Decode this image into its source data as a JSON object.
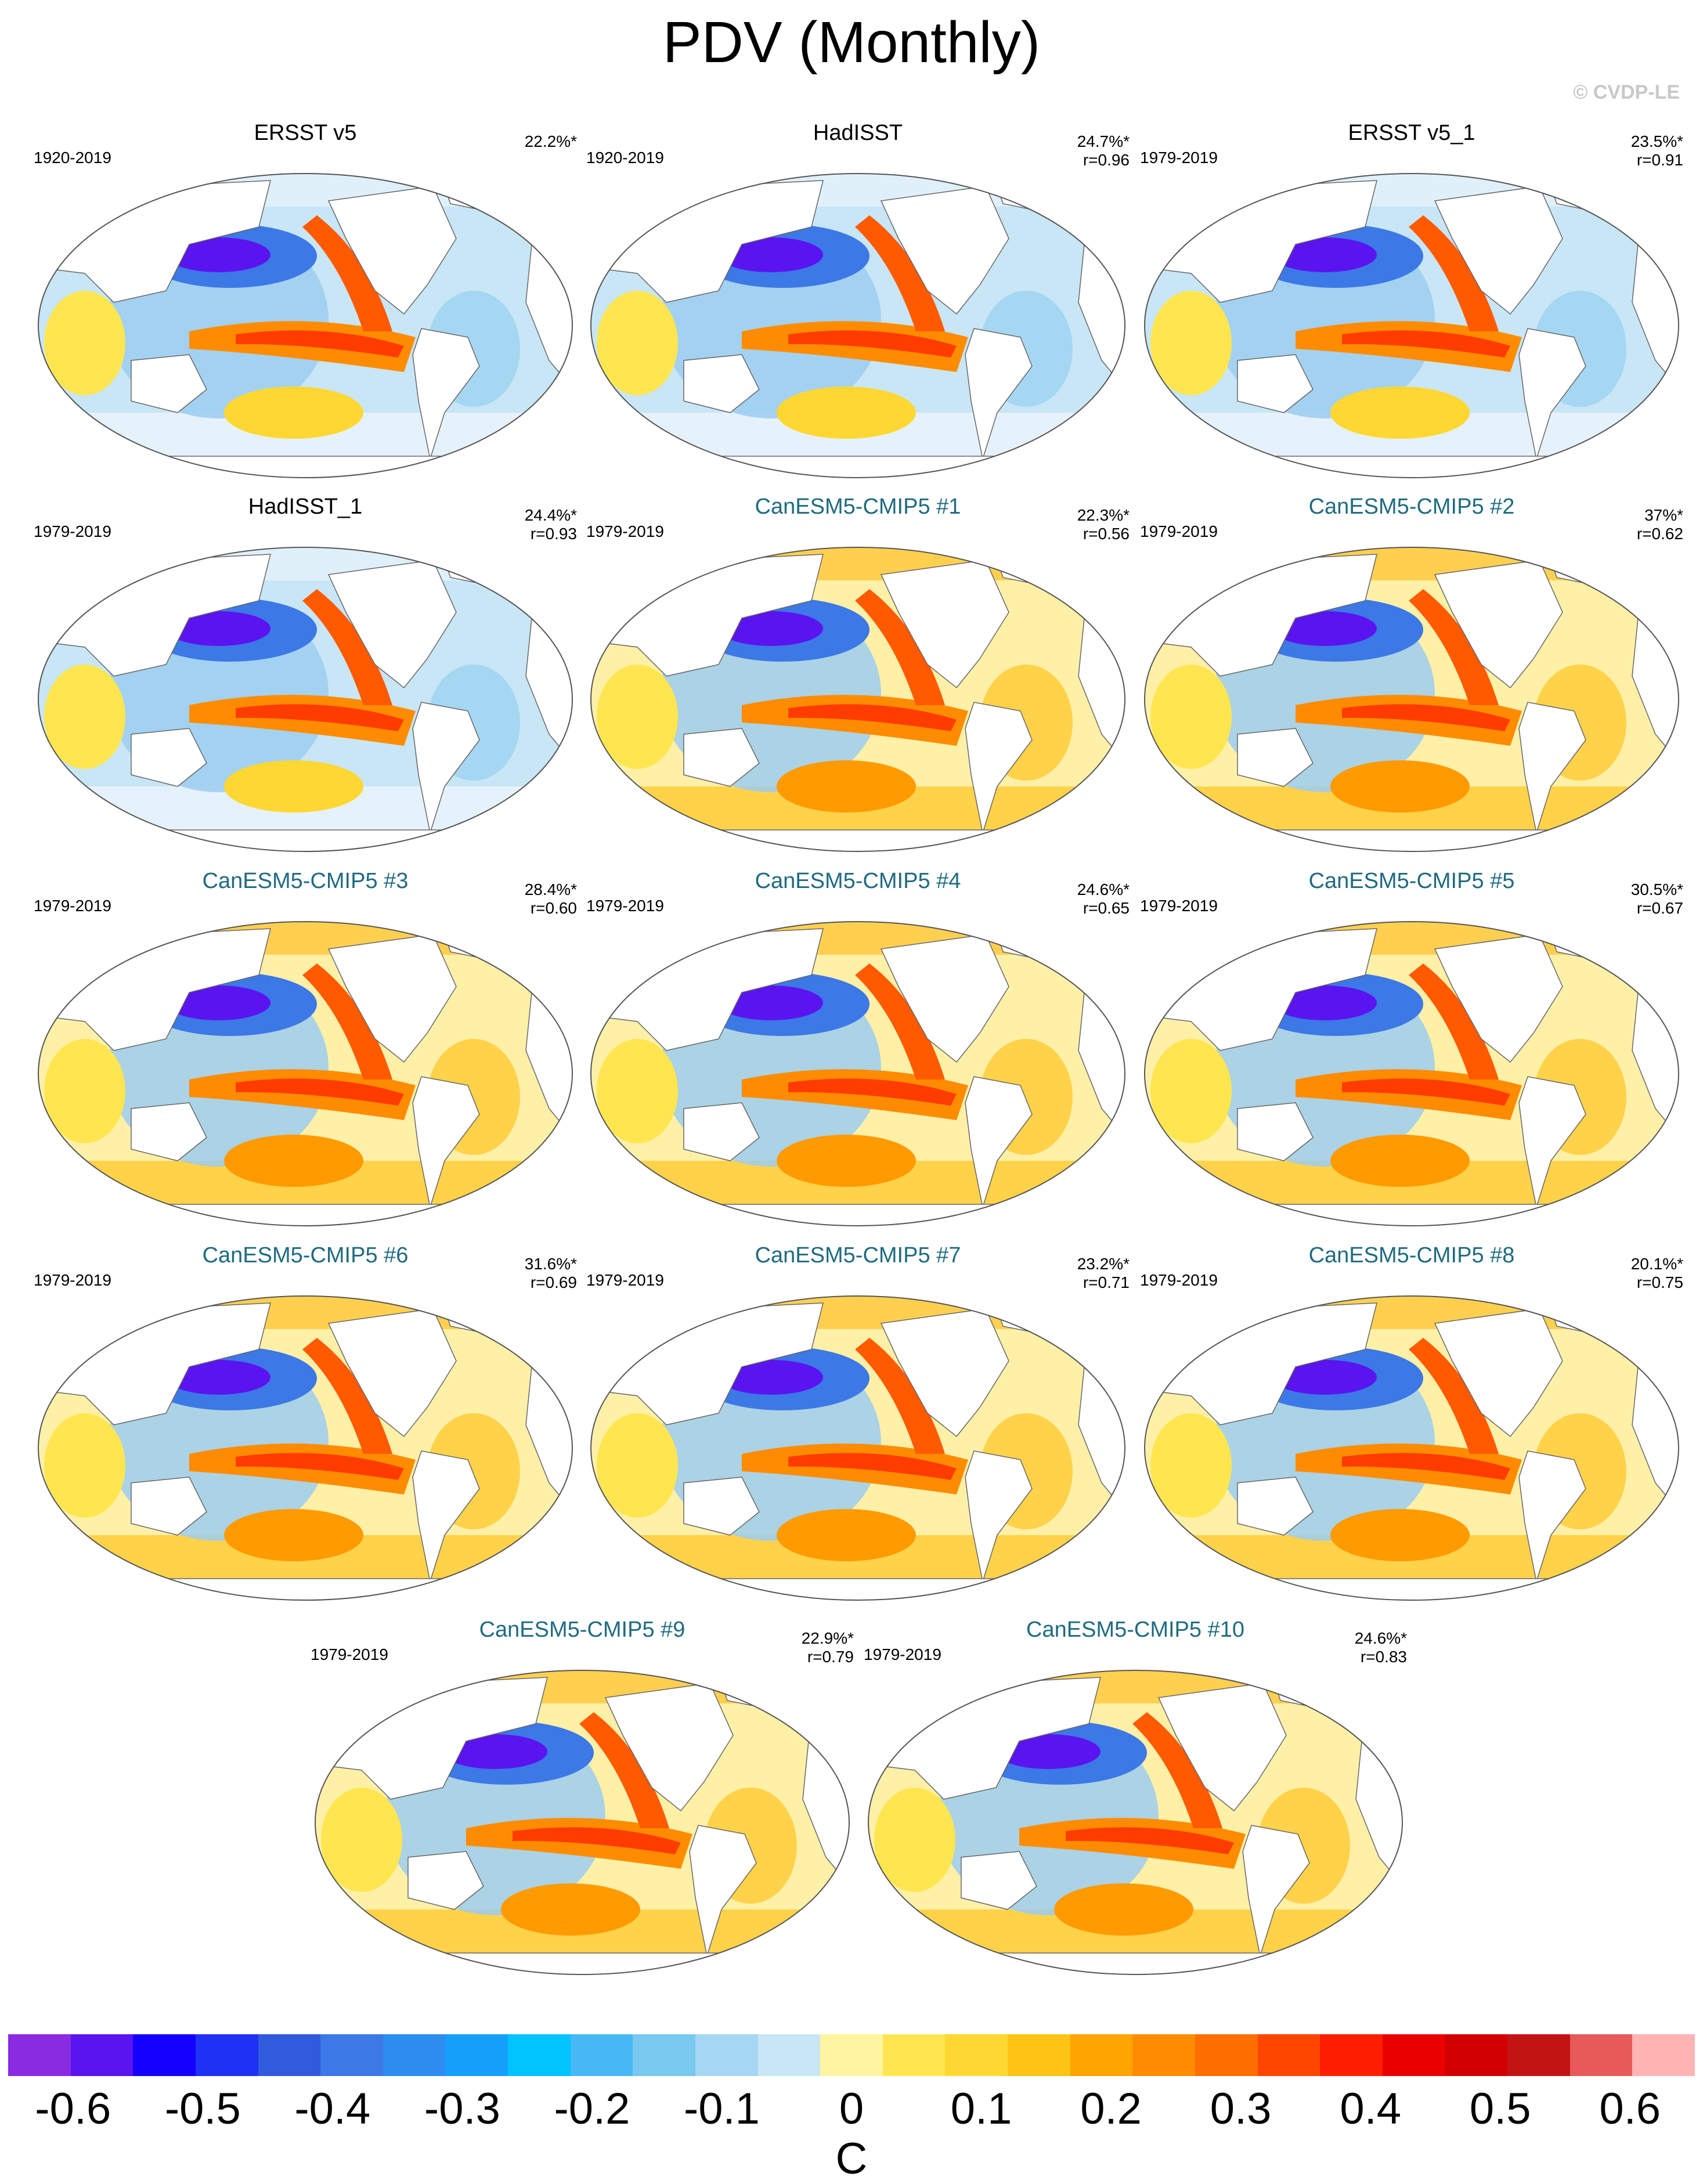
{
  "title": "PDV (Monthly)",
  "copyright": "© CVDP-LE",
  "chart_data": {
    "type": "heatmap",
    "title": "PDV (Monthly)",
    "panels": [
      {
        "name": "ERSST v5",
        "period": "1920-2019",
        "pct": "22.2%*",
        "r": "",
        "kind": "obs"
      },
      {
        "name": "HadISST",
        "period": "1920-2019",
        "pct": "24.7%*",
        "r": "r=0.96",
        "kind": "obs"
      },
      {
        "name": "ERSST v5_1",
        "period": "1979-2019",
        "pct": "23.5%*",
        "r": "r=0.91",
        "kind": "obs"
      },
      {
        "name": "HadISST_1",
        "period": "1979-2019",
        "pct": "24.4%*",
        "r": "r=0.93",
        "kind": "obs"
      },
      {
        "name": "CanESM5-CMIP5 #1",
        "period": "1979-2019",
        "pct": "22.3%*",
        "r": "r=0.56",
        "kind": "model"
      },
      {
        "name": "CanESM5-CMIP5 #2",
        "period": "1979-2019",
        "pct": "37%*",
        "r": "r=0.62",
        "kind": "model"
      },
      {
        "name": "CanESM5-CMIP5 #3",
        "period": "1979-2019",
        "pct": "28.4%*",
        "r": "r=0.60",
        "kind": "model"
      },
      {
        "name": "CanESM5-CMIP5 #4",
        "period": "1979-2019",
        "pct": "24.6%*",
        "r": "r=0.65",
        "kind": "model"
      },
      {
        "name": "CanESM5-CMIP5 #5",
        "period": "1979-2019",
        "pct": "30.5%*",
        "r": "r=0.67",
        "kind": "model"
      },
      {
        "name": "CanESM5-CMIP5 #6",
        "period": "1979-2019",
        "pct": "31.6%*",
        "r": "r=0.69",
        "kind": "model"
      },
      {
        "name": "CanESM5-CMIP5 #7",
        "period": "1979-2019",
        "pct": "23.2%*",
        "r": "r=0.71",
        "kind": "model"
      },
      {
        "name": "CanESM5-CMIP5 #8",
        "period": "1979-2019",
        "pct": "20.1%*",
        "r": "r=0.75",
        "kind": "model"
      },
      {
        "name": "CanESM5-CMIP5 #9",
        "period": "1979-2019",
        "pct": "22.9%*",
        "r": "r=0.79",
        "kind": "model"
      },
      {
        "name": "CanESM5-CMIP5 #10",
        "period": "1979-2019",
        "pct": "24.6%*",
        "r": "r=0.83",
        "kind": "model"
      }
    ],
    "colorbar": {
      "label": "C",
      "tick_labels": [
        "-0.6",
        "-0.5",
        "-0.4",
        "-0.3",
        "-0.2",
        "-0.1",
        "0",
        "0.1",
        "0.2",
        "0.3",
        "0.4",
        "0.5",
        "0.6"
      ],
      "colors": [
        "#8a2be2",
        "#5a14f0",
        "#1400ff",
        "#1e32f5",
        "#325adc",
        "#3c78e6",
        "#2d8cf0",
        "#14a0fa",
        "#00c3ff",
        "#46b9f5",
        "#78c8f0",
        "#a5d7f2",
        "#c8e6f5",
        "#fff5a0",
        "#ffe650",
        "#ffd732",
        "#ffc314",
        "#ffa500",
        "#ff8c00",
        "#ff6e00",
        "#ff4600",
        "#ff1e00",
        "#eb0000",
        "#d20000",
        "#c31414",
        "#e65a5a",
        "#ffb4b4"
      ],
      "range": [
        -0.65,
        0.65
      ]
    }
  }
}
